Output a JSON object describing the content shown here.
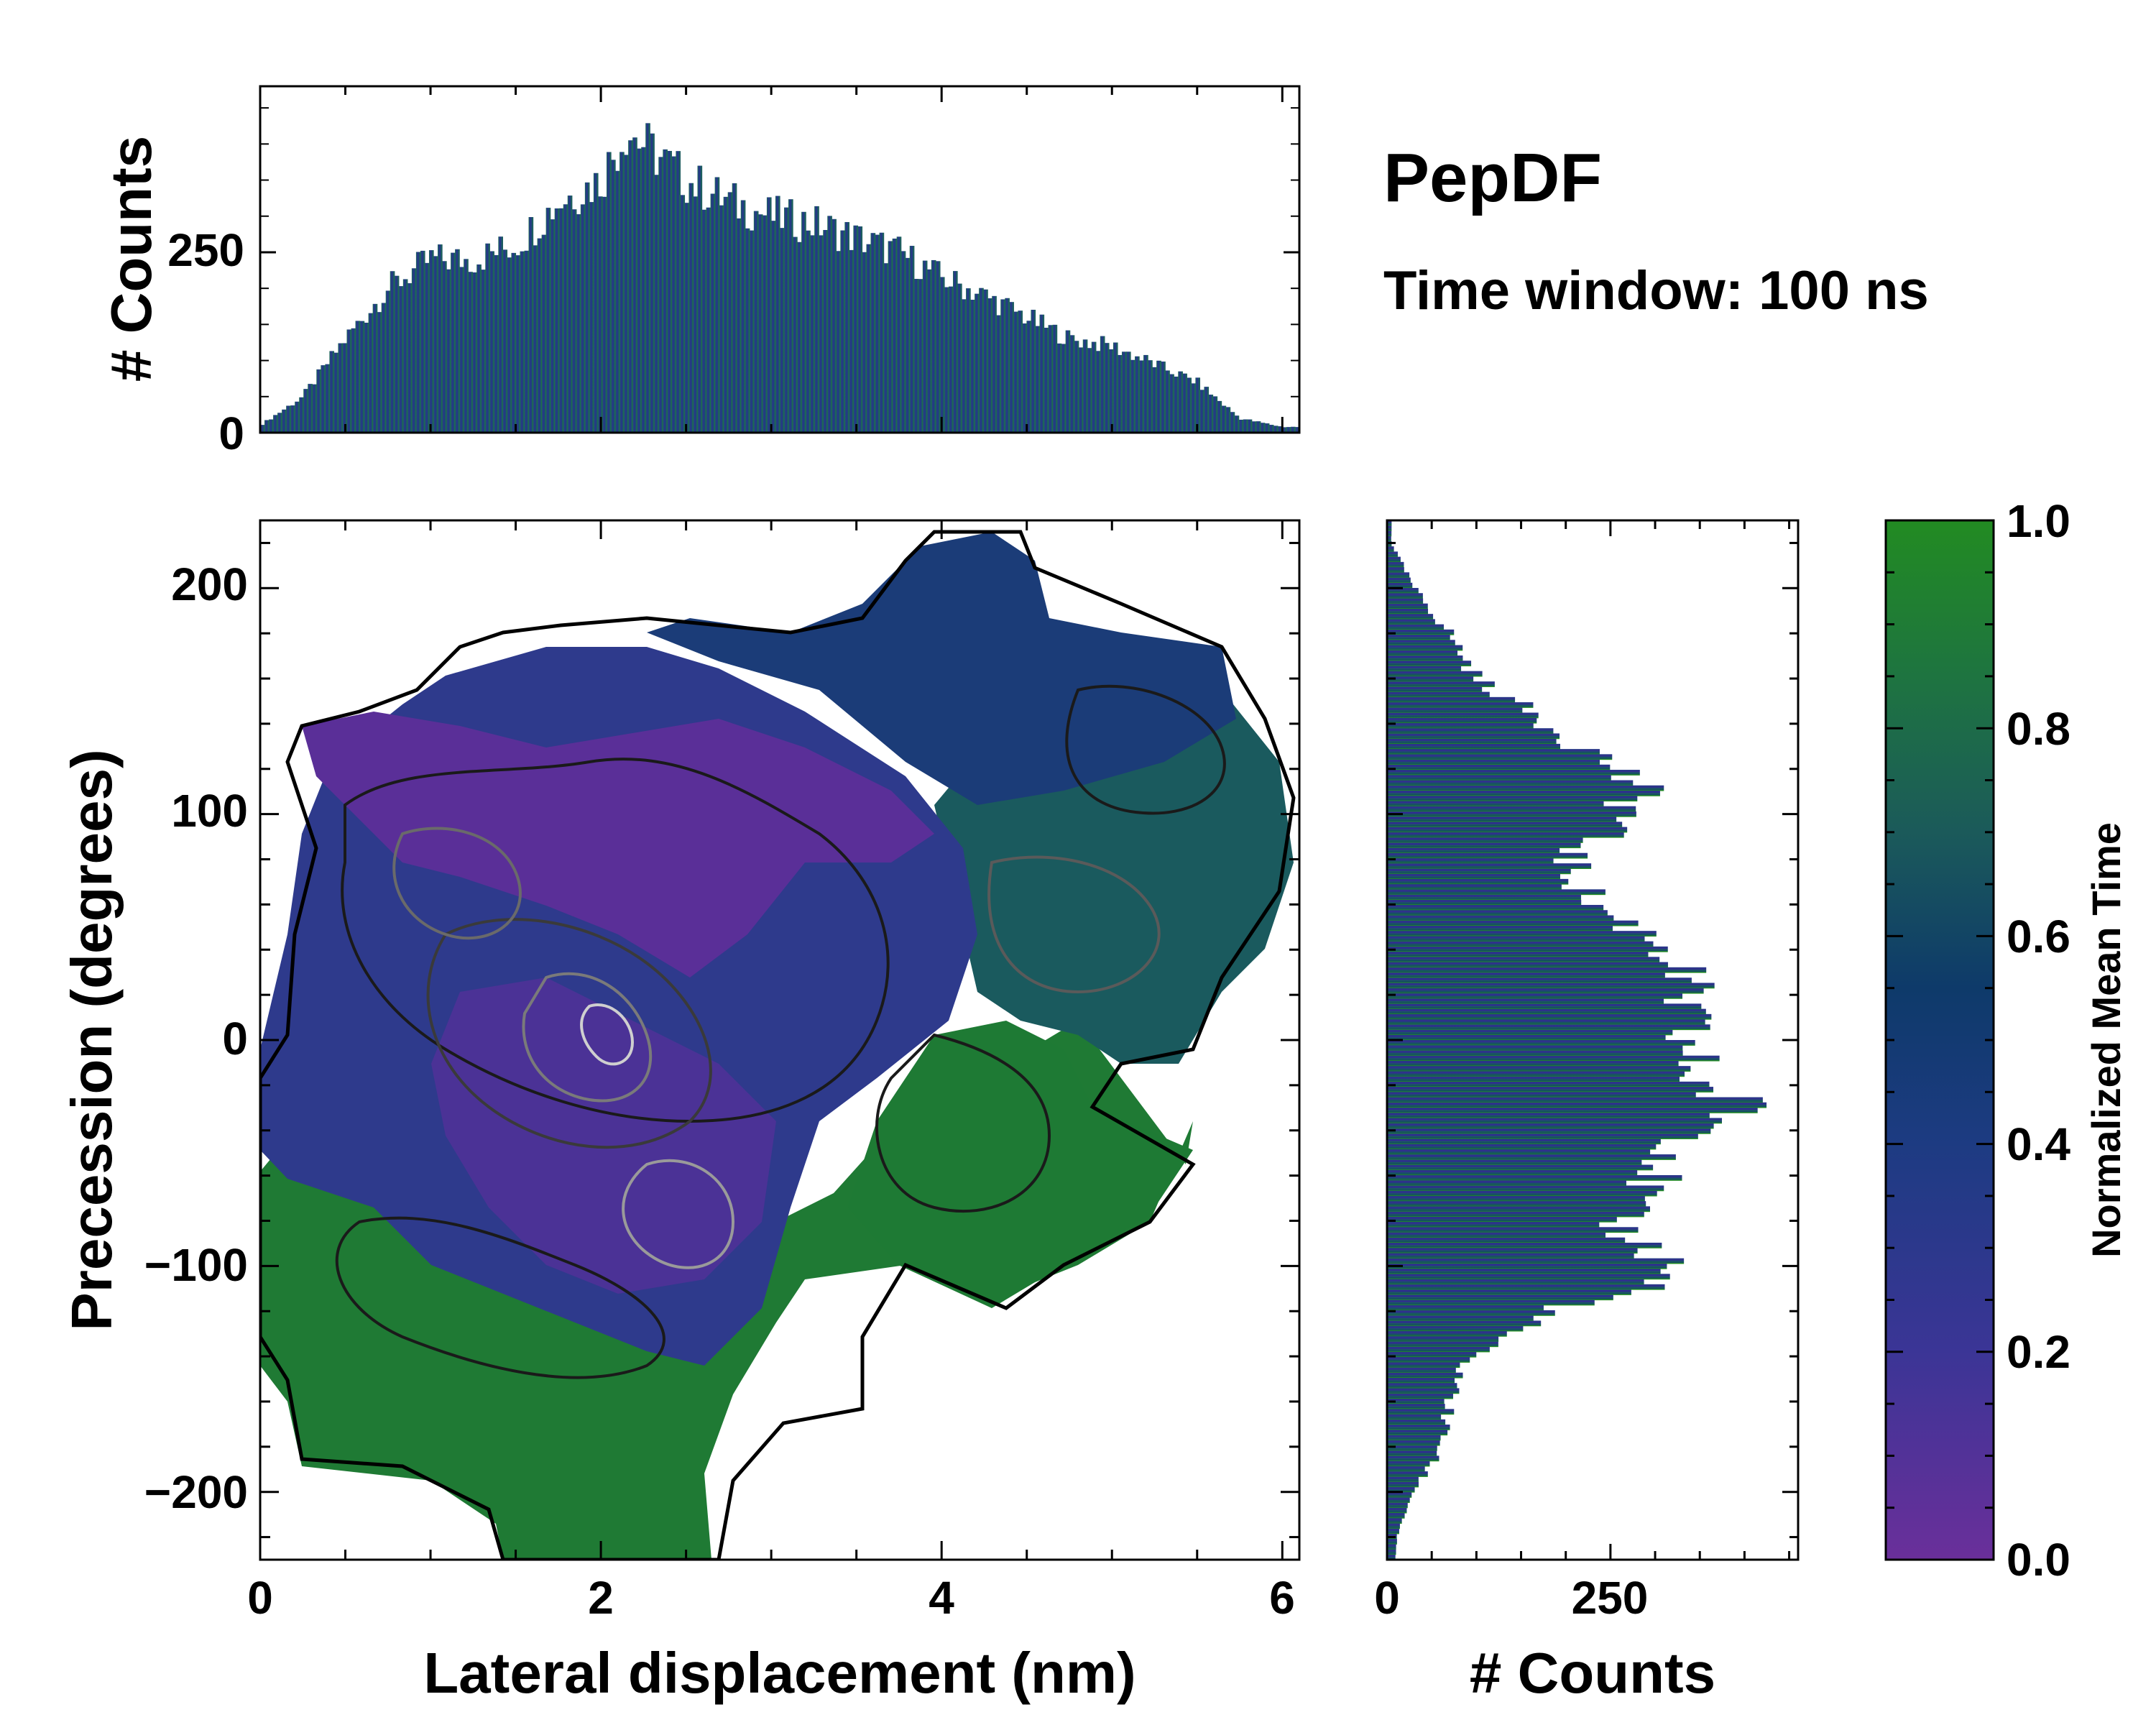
{
  "title": "PepDF",
  "subtitle": "Time window: 100 ns",
  "colors": {
    "purple": "#6a2f9a",
    "indigo": "#2c3a8a",
    "navy": "#0e3a6a",
    "teal": "#1f5c5a",
    "green": "#1f8a2e"
  },
  "chart_data": [
    {
      "type": "heatmap",
      "name": "main-2d-histogram",
      "xlabel": "Lateral displacement (nm)",
      "ylabel": "Precession (degrees)",
      "xlim": [
        0,
        6.1
      ],
      "ylim": [
        -230,
        230
      ],
      "xticks": [
        "0",
        "2",
        "4",
        "6"
      ],
      "yticks": [
        "200",
        "100",
        "0",
        "−100",
        "−200"
      ],
      "colorbar": {
        "label": "Normalized Mean Time",
        "range": [
          0.0,
          1.0
        ],
        "ticks": [
          "0.0",
          "0.2",
          "0.4",
          "0.6",
          "0.8",
          "1.0"
        ]
      },
      "regions": [
        {
          "description": "purple band",
          "x_range": [
            0.3,
            4.0
          ],
          "y_range": [
            20,
            140
          ],
          "normalized_time": 0.15
        },
        {
          "description": "indigo core",
          "x_range": [
            0.0,
            4.0
          ],
          "y_range": [
            -140,
            20
          ],
          "normalized_time": 0.3
        },
        {
          "description": "navy upper right",
          "x_range": [
            2.5,
            5.5
          ],
          "y_range": [
            120,
            230
          ],
          "normalized_time": 0.45
        },
        {
          "description": "teal right",
          "x_range": [
            4.0,
            6.1
          ],
          "y_range": [
            0,
            130
          ],
          "normalized_time": 0.6
        },
        {
          "description": "green lower",
          "x_range": [
            0.0,
            5.5
          ],
          "y_range": [
            -220,
            -10
          ],
          "normalized_time": 0.9
        }
      ]
    },
    {
      "type": "bar",
      "name": "top-marginal-histogram",
      "ylabel": "# Counts",
      "yticks": [
        "0",
        "250"
      ],
      "ylim": [
        0,
        480
      ],
      "x": [
        0.0,
        0.25,
        0.5,
        0.75,
        1.0,
        1.25,
        1.5,
        1.75,
        2.0,
        2.15,
        2.25,
        2.5,
        2.75,
        3.0,
        3.25,
        3.5,
        3.75,
        4.0,
        4.25,
        4.5,
        4.75,
        5.0,
        5.25,
        5.5,
        5.75,
        6.0
      ],
      "values": [
        10,
        50,
        130,
        200,
        240,
        240,
        260,
        320,
        350,
        420,
        400,
        350,
        320,
        300,
        290,
        270,
        250,
        215,
        190,
        160,
        130,
        120,
        95,
        70,
        20,
        8
      ]
    },
    {
      "type": "bar",
      "orientation": "horizontal",
      "name": "right-marginal-histogram",
      "xlabel": "# Counts",
      "xticks": [
        "0",
        "250"
      ],
      "xlim": [
        0,
        460
      ],
      "y": [
        220,
        200,
        180,
        160,
        140,
        120,
        110,
        100,
        80,
        60,
        40,
        20,
        0,
        -20,
        -30,
        -40,
        -60,
        -80,
        -100,
        -110,
        -120,
        -140,
        -160,
        -180,
        -200,
        -220
      ],
      "values": [
        5,
        30,
        70,
        100,
        180,
        260,
        280,
        270,
        200,
        230,
        320,
        330,
        330,
        350,
        400,
        360,
        300,
        250,
        320,
        290,
        180,
        90,
        70,
        60,
        30,
        10
      ]
    }
  ]
}
